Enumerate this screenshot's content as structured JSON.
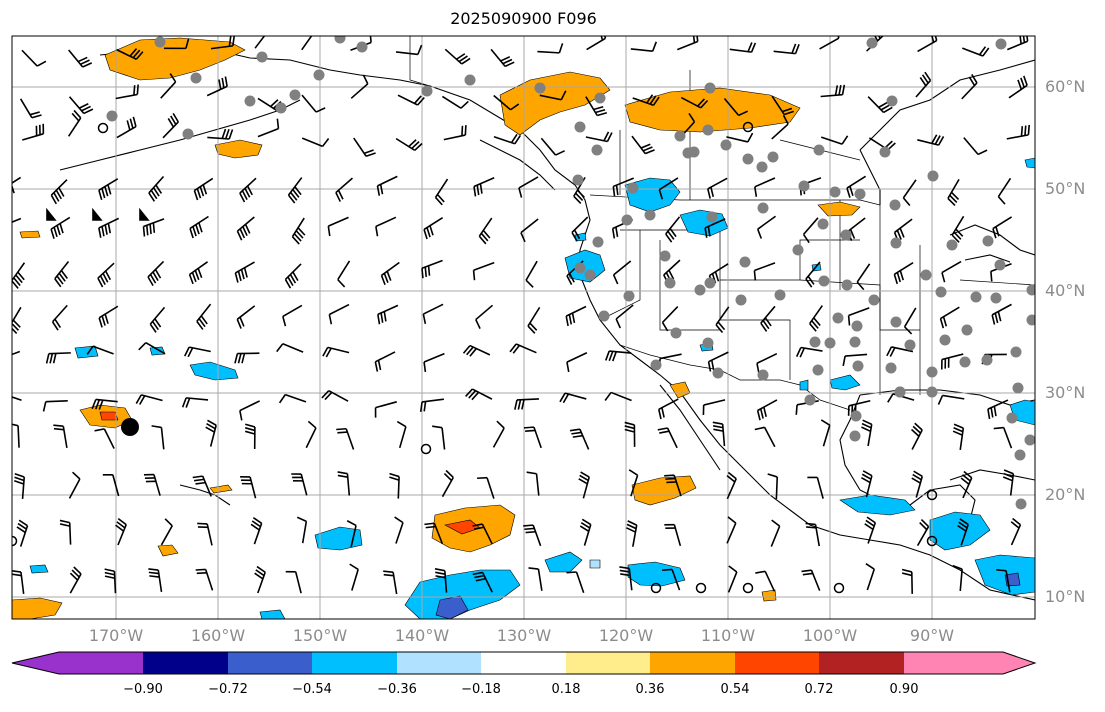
{
  "title": "2025090900 F096",
  "lat_labels": [
    "60°N",
    "50°N",
    "40°N",
    "30°N",
    "20°N",
    "10°N"
  ],
  "lon_labels": [
    "170°W",
    "160°W",
    "150°W",
    "140°W",
    "130°W",
    "120°W",
    "110°W",
    "100°W",
    "90°W"
  ],
  "colorbar": {
    "ticks": [
      "−0.90",
      "−0.72",
      "−0.54",
      "−0.36",
      "−0.18",
      "0.18",
      "0.36",
      "0.54",
      "0.72",
      "0.90"
    ],
    "colors": [
      "#9932cc",
      "#00008b",
      "#3a5fcd",
      "#00bfff",
      "#b0e2ff",
      "#ffffff",
      "#ffec8b",
      "#ffa500",
      "#ff4500",
      "#b22222",
      "#ff83b3"
    ]
  },
  "map_colors": {
    "grid": "#a8a8a8",
    "coast": "#000000",
    "station": "#808080",
    "pos_fill": "#ffa500",
    "pos_fill_high": "#ff4500",
    "neg_fill": "#00bfff",
    "neg_fill_high": "#3a5fcd",
    "neg_fill_light": "#b0e2ff"
  }
}
